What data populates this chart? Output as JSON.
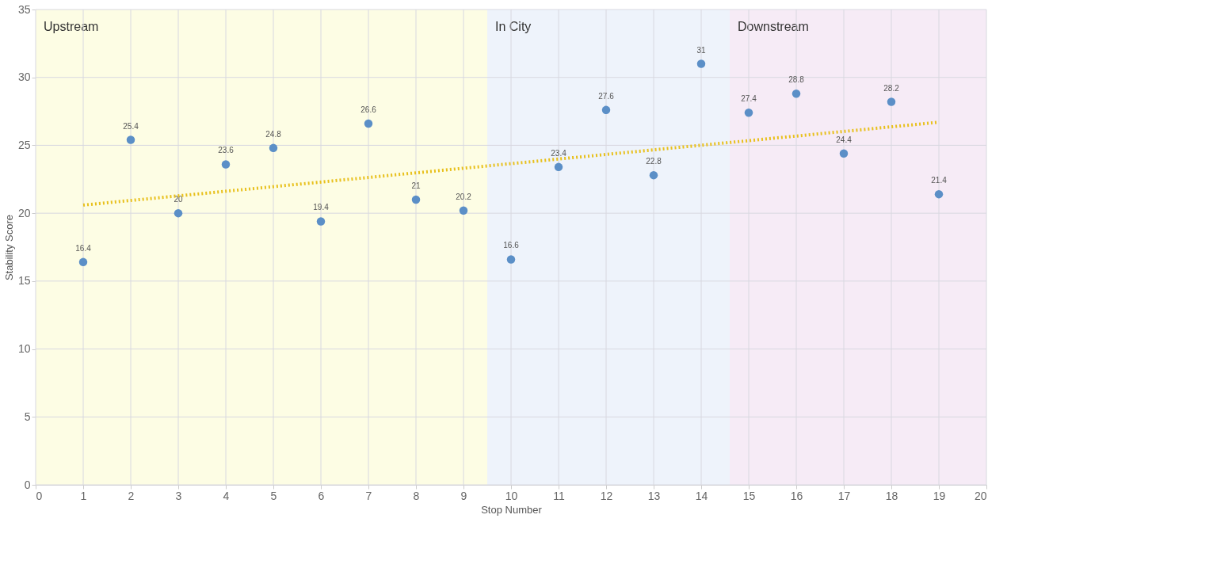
{
  "chart_data": {
    "type": "scatter",
    "xlabel": "Stop Number",
    "ylabel": "Stability Score",
    "x": [
      1,
      2,
      3,
      4,
      5,
      6,
      7,
      8,
      9,
      10,
      11,
      12,
      13,
      14,
      15,
      16,
      17,
      18,
      19
    ],
    "series": [
      {
        "color": "#5b8fc7",
        "marker": "circle",
        "values": [
          16.4,
          25.4,
          20,
          23.6,
          24.8,
          19.4,
          26.6,
          21,
          20.2,
          16.6,
          23.4,
          27.6,
          22.8,
          31,
          27.4,
          28.8,
          24.4,
          28.2,
          21.4
        ],
        "value_labels": [
          "16.4",
          "25.4",
          "20",
          "23.6",
          "24.8",
          "19.4",
          "26.6",
          "21",
          "20.2",
          "16.6",
          "23.4",
          "27.6",
          "22.8",
          "31",
          "27.4",
          "28.8",
          "24.4",
          "28.2",
          "21.4"
        ]
      },
      {
        "type": "line",
        "marker": "none",
        "x": [
          1,
          19
        ],
        "values": [
          20.6,
          26.7
        ],
        "color": "#e8c01c",
        "line_style": "dotted"
      }
    ],
    "xlim": [
      0,
      20
    ],
    "xticks": [
      0,
      1,
      2,
      3,
      4,
      5,
      6,
      7,
      8,
      9,
      10,
      11,
      12,
      13,
      14,
      15,
      16,
      17,
      18,
      19,
      20
    ],
    "ylim": [
      0,
      35
    ],
    "yticks": [
      0,
      5,
      10,
      15,
      20,
      25,
      30,
      35
    ],
    "grid": true,
    "bands": [
      {
        "axis": "x",
        "from": 0,
        "to": 9.5,
        "label": "Upstream",
        "color": "#fdfde4"
      },
      {
        "axis": "x",
        "from": 9.5,
        "to": 14.6,
        "label": "In City",
        "color": "#eef3fb"
      },
      {
        "axis": "x",
        "from": 14.6,
        "to": 20,
        "label": "Downstream",
        "color": "#f6ebf6"
      }
    ]
  }
}
